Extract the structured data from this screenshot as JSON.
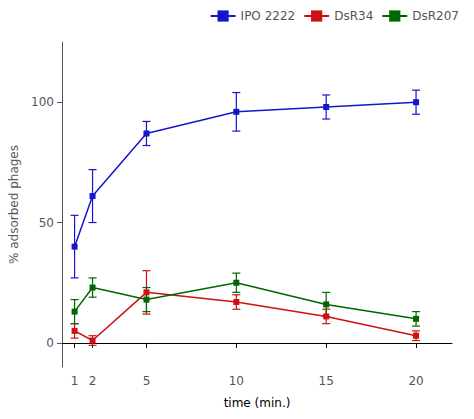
{
  "chart_data": {
    "type": "line",
    "x": [
      1,
      2,
      5,
      10,
      15,
      20
    ],
    "series": [
      {
        "name": "IPO 2222",
        "color": "#1515CC",
        "values": [
          40,
          61,
          87,
          96,
          98,
          100
        ],
        "yerr": [
          13,
          11,
          5,
          8,
          5,
          5
        ]
      },
      {
        "name": "DsR34",
        "color": "#CC1111",
        "values": [
          5,
          1,
          21,
          17,
          11,
          3
        ],
        "yerr": [
          3,
          2,
          9,
          3,
          3,
          2
        ]
      },
      {
        "name": "DsR207",
        "color": "#006600",
        "values": [
          13,
          23,
          18,
          25,
          16,
          10
        ],
        "yerr": [
          5,
          4,
          5,
          4,
          5,
          3
        ]
      }
    ],
    "xlabel": "time (min.)",
    "ylabel": "% adsorbed phages",
    "xlim": [
      0.3,
      22
    ],
    "ylim": [
      -10,
      125
    ],
    "xticks": [
      1,
      2,
      5,
      10,
      15,
      20
    ],
    "yticks": [
      0,
      50,
      100
    ],
    "grid": false,
    "legend": "upper right",
    "marker": "square"
  }
}
